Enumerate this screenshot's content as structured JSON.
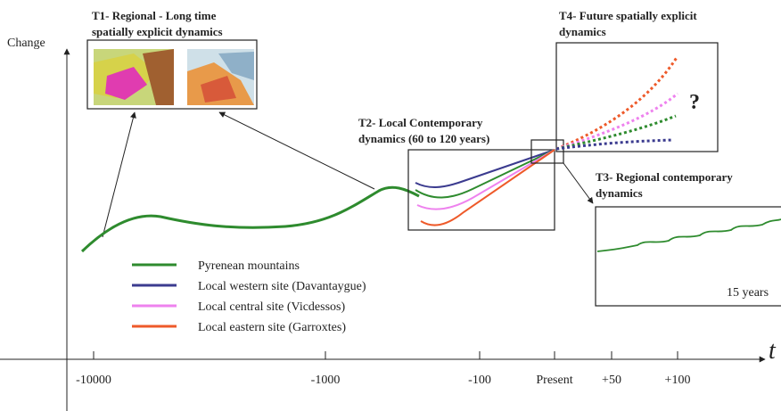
{
  "axis": {
    "y_label": "Change",
    "x_label": "t",
    "ticks": [
      "-10000",
      "-1000",
      "-100",
      "Present",
      "+50",
      "+100"
    ]
  },
  "panels": {
    "t1": {
      "title": [
        "T1- Regional - Long time",
        "spatially explicit dynamics"
      ]
    },
    "t2": {
      "title": [
        "T2- Local Contemporary",
        "dynamics (60 to 120 years)"
      ]
    },
    "t3": {
      "title": [
        "T3- Regional  contemporary",
        "dynamics"
      ],
      "note": "15 years"
    },
    "t4": {
      "title": [
        "T4- Future spatially explicit",
        "dynamics"
      ],
      "note": "?"
    }
  },
  "legend": [
    {
      "label": "Pyrenean mountains",
      "color": "#2e8b2e"
    },
    {
      "label": "Local western site (Davantaygue)",
      "color": "#3b3b8f"
    },
    {
      "label": "Local central site (Vicdessos)",
      "color": "#ee82ee"
    },
    {
      "label": "Local eastern site (Garroxtes)",
      "color": "#ee5a2a"
    }
  ]
}
